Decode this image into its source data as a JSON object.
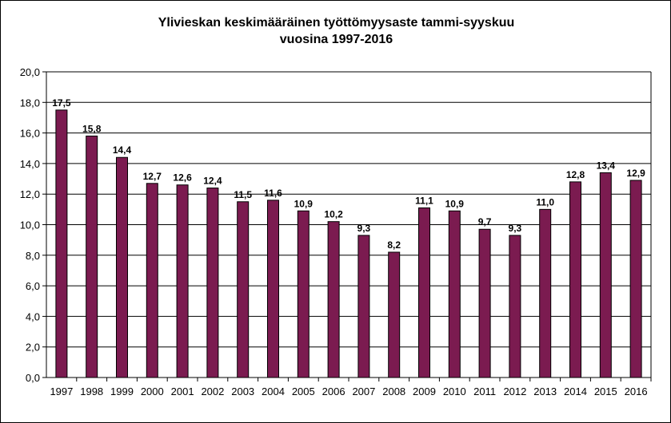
{
  "chart_data": {
    "type": "bar",
    "title_line1": "Ylivieskan keskimääräinen työttömyysaste tammi-syyskuu",
    "title_line2": "vuosina 1997-2016",
    "xlabel": "",
    "ylabel": "",
    "ylim": [
      0,
      20
    ],
    "yticks": [
      "0,0",
      "2,0",
      "4,0",
      "6,0",
      "8,0",
      "10,0",
      "12,0",
      "14,0",
      "16,0",
      "18,0",
      "20,0"
    ],
    "categories": [
      "1997",
      "1998",
      "1999",
      "2000",
      "2001",
      "2002",
      "2003",
      "2004",
      "2005",
      "2006",
      "2007",
      "2008",
      "2009",
      "2010",
      "2011",
      "2012",
      "2013",
      "2014",
      "2015",
      "2016"
    ],
    "values": [
      17.5,
      15.8,
      14.4,
      12.7,
      12.6,
      12.4,
      11.5,
      11.6,
      10.9,
      10.2,
      9.3,
      8.2,
      11.1,
      10.9,
      9.7,
      9.3,
      11.0,
      12.8,
      13.4,
      12.9
    ],
    "data_labels": [
      "17,5",
      "15,8",
      "14,4",
      "12,7",
      "12,6",
      "12,4",
      "11,5",
      "11,6",
      "10,9",
      "10,2",
      "9,3",
      "8,2",
      "11,1",
      "10,9",
      "9,7",
      "9,3",
      "11,0",
      "12,8",
      "13,4",
      "12,9"
    ],
    "grid": true,
    "legend": "none",
    "bar_color": "#7b1b50"
  }
}
